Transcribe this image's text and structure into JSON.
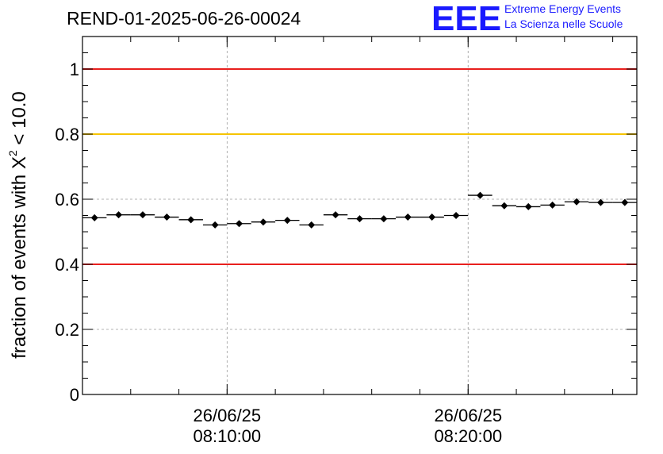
{
  "header": {
    "title": "REND-01-2025-06-26-00024",
    "logo_mark": "EEE",
    "logo_line1": "Extreme Energy Events",
    "logo_line2": "La Scienza nelle Scuole"
  },
  "chart_data": {
    "type": "scatter",
    "title": "REND-01-2025-06-26-00024",
    "ylabel_prefix": "fraction of events with ",
    "ylabel_symbol": "X",
    "ylabel_exp": "2",
    "ylabel_suffix": " < 10.0",
    "ylim": [
      0,
      1.1
    ],
    "y_ticks": [
      "0",
      "0.2",
      "0.4",
      "0.6",
      "0.8",
      "1"
    ],
    "x_ticks": [
      {
        "time": "08:10:00",
        "date": "26/06/25"
      },
      {
        "time": "08:20:00",
        "date": "26/06/25"
      }
    ],
    "grid": true,
    "reference_lines": [
      {
        "y": 1.0,
        "color": "#e8201e"
      },
      {
        "y": 0.8,
        "color": "#f5c400"
      },
      {
        "y": 0.4,
        "color": "#e8201e"
      }
    ],
    "bin_width_minutes": 1,
    "x": [
      "08:04:30",
      "08:05:30",
      "08:06:30",
      "08:07:30",
      "08:08:30",
      "08:09:30",
      "08:10:30",
      "08:11:30",
      "08:12:30",
      "08:13:30",
      "08:14:30",
      "08:15:30",
      "08:16:30",
      "08:17:30",
      "08:18:30",
      "08:19:30",
      "08:20:30",
      "08:21:30",
      "08:22:30",
      "08:23:30",
      "08:24:30",
      "08:25:30",
      "08:26:30"
    ],
    "values": [
      0.543,
      0.552,
      0.552,
      0.545,
      0.537,
      0.521,
      0.525,
      0.53,
      0.535,
      0.521,
      0.552,
      0.54,
      0.54,
      0.545,
      0.545,
      0.55,
      0.612,
      0.58,
      0.577,
      0.582,
      0.592,
      0.59,
      0.59
    ],
    "errors": [
      0.006,
      0.006,
      0.006,
      0.006,
      0.006,
      0.006,
      0.006,
      0.006,
      0.006,
      0.006,
      0.006,
      0.006,
      0.006,
      0.006,
      0.006,
      0.006,
      0.006,
      0.006,
      0.006,
      0.006,
      0.006,
      0.006,
      0.006
    ]
  }
}
